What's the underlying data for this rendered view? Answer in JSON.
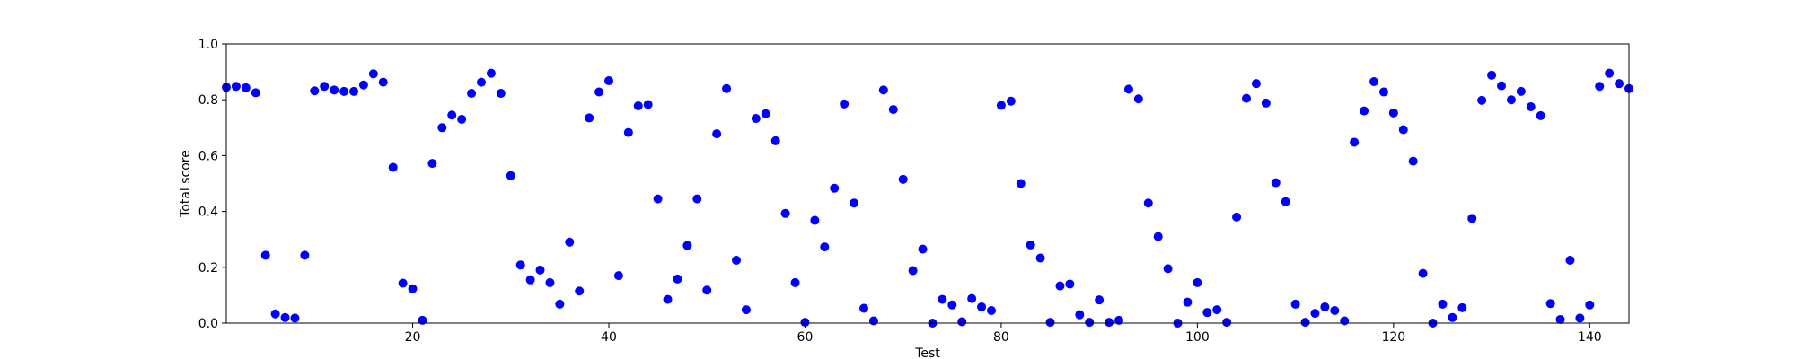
{
  "chart_data": {
    "type": "scatter",
    "title": "",
    "xlabel": "Test",
    "ylabel": "Total score",
    "xlim": [
      1,
      144
    ],
    "ylim": [
      0.0,
      1.0
    ],
    "x_ticks": [
      20,
      40,
      60,
      80,
      100,
      120,
      140
    ],
    "x_tick_labels": [
      "20",
      "40",
      "60",
      "80",
      "100",
      "120",
      "140"
    ],
    "y_ticks": [
      0.0,
      0.2,
      0.4,
      0.6,
      0.8,
      1.0
    ],
    "y_tick_labels": [
      "0.0",
      "0.2",
      "0.4",
      "0.6",
      "0.8",
      "1.0"
    ],
    "grid": false,
    "marker_color": "#0000ff",
    "series": [
      {
        "x": [
          1,
          2,
          3,
          4,
          5,
          6,
          7,
          8,
          9,
          10,
          11,
          12,
          13,
          14,
          15,
          16,
          17,
          18,
          19,
          20,
          21,
          22,
          23,
          24,
          25,
          26,
          27,
          28,
          29,
          30,
          31,
          32,
          33,
          34,
          35,
          36,
          37,
          38,
          39,
          40,
          41,
          42,
          43,
          44,
          45,
          46,
          47,
          48,
          49,
          50,
          51,
          52,
          53,
          54,
          55,
          56,
          57,
          58,
          59,
          60,
          61,
          62,
          63,
          64,
          65,
          66,
          67,
          68,
          69,
          70,
          71,
          72,
          73,
          74,
          75,
          76,
          77,
          78,
          79,
          80,
          81,
          82,
          83,
          84,
          85,
          86,
          87,
          88,
          89,
          90,
          91,
          92,
          93,
          94,
          95,
          96,
          97,
          98,
          99,
          100,
          101,
          102,
          103,
          104,
          105,
          106,
          107,
          108,
          109,
          110,
          111,
          112,
          113,
          114,
          115,
          116,
          117,
          118,
          119,
          120,
          121,
          122,
          123,
          124,
          125,
          126,
          127,
          128,
          129,
          130,
          131,
          132,
          133,
          134,
          135,
          136,
          137,
          138,
          139,
          140,
          141,
          142,
          143,
          144
        ],
        "y": [
          0.845,
          0.848,
          0.843,
          0.825,
          0.243,
          0.033,
          0.02,
          0.018,
          0.243,
          0.832,
          0.848,
          0.835,
          0.83,
          0.83,
          0.853,
          0.893,
          0.863,
          0.558,
          0.143,
          0.123,
          0.01,
          0.572,
          0.7,
          0.745,
          0.73,
          0.823,
          0.863,
          0.895,
          0.823,
          0.528,
          0.208,
          0.155,
          0.19,
          0.145,
          0.068,
          0.29,
          0.115,
          0.735,
          0.828,
          0.868,
          0.17,
          0.683,
          0.778,
          0.783,
          0.445,
          0.085,
          0.158,
          0.278,
          0.445,
          0.118,
          0.678,
          0.84,
          0.225,
          0.048,
          0.733,
          0.75,
          0.653,
          0.393,
          0.145,
          0.003,
          0.368,
          0.273,
          0.483,
          0.785,
          0.43,
          0.053,
          0.008,
          0.835,
          0.765,
          0.515,
          0.188,
          0.265,
          0.0,
          0.085,
          0.065,
          0.005,
          0.088,
          0.058,
          0.045,
          0.78,
          0.795,
          0.5,
          0.28,
          0.233,
          0.003,
          0.133,
          0.14,
          0.03,
          0.003,
          0.083,
          0.003,
          0.01,
          0.838,
          0.803,
          0.43,
          0.31,
          0.195,
          0.0,
          0.075,
          0.145,
          0.038,
          0.048,
          0.003,
          0.38,
          0.805,
          0.858,
          0.788,
          0.503,
          0.435,
          0.068,
          0.003,
          0.035,
          0.058,
          0.045,
          0.008,
          0.648,
          0.76,
          0.865,
          0.828,
          0.753,
          0.693,
          0.58,
          0.178,
          0.0,
          0.068,
          0.02,
          0.055,
          0.375,
          0.798,
          0.888,
          0.85,
          0.8,
          0.83,
          0.775,
          0.743,
          0.07,
          0.013,
          0.225,
          0.018,
          0.065,
          0.848,
          0.895,
          0.858,
          0.84
        ]
      }
    ]
  }
}
